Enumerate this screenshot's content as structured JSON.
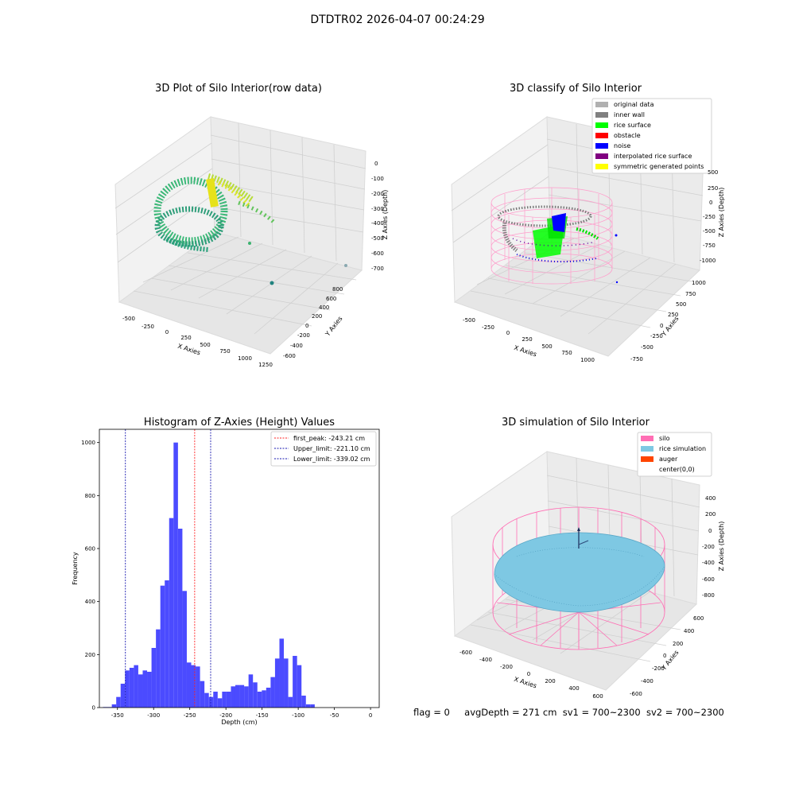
{
  "suptitle": "DTDTR02 2026-04-07 00:24:29",
  "colors": {
    "hist_bar": "#4b4bff",
    "first_peak": "#ff2222",
    "limits": "#1a1ab0",
    "silo": "#ff6eb4",
    "rice": "#7ec8e3",
    "auger": "#ff4500",
    "rice_surface": "#00ff00",
    "noise": "#0000ff"
  },
  "panels": {
    "raw": {
      "title": "3D Plot of Silo Interior(row data)",
      "xlabel": "X Axies",
      "ylabel": "Y Axies",
      "zlabel": "Z Axies (Depth)",
      "xticks": [
        "-500",
        "-250",
        "0",
        "250",
        "500",
        "750",
        "1000",
        "1250"
      ],
      "yticks": [
        "800",
        "600",
        "400",
        "200",
        "0",
        "-200",
        "-400",
        "-600"
      ],
      "zticks": [
        "0",
        "-100",
        "-200",
        "-300",
        "-400",
        "-500",
        "-600",
        "-700"
      ]
    },
    "classify": {
      "title": "3D classify of Silo Interior",
      "xlabel": "X Axies",
      "ylabel": "Y Axies",
      "zlabel": "Z Axies (Depth)",
      "xticks": [
        "-500",
        "-250",
        "0",
        "250",
        "500",
        "750",
        "1000"
      ],
      "yticks": [
        "1000",
        "750",
        "500",
        "250",
        "0",
        "-250",
        "-500",
        "-750"
      ],
      "zticks": [
        "500",
        "250",
        "0",
        "-250",
        "-500",
        "-750",
        "-1000"
      ],
      "legend": [
        {
          "label": "original data",
          "color": "#b0b0b0"
        },
        {
          "label": "inner wall",
          "color": "#808080"
        },
        {
          "label": "rice surface",
          "color": "#00ff00"
        },
        {
          "label": "obstacle",
          "color": "#ff0000"
        },
        {
          "label": "noise",
          "color": "#0000ff"
        },
        {
          "label": "interpolated rice surface",
          "color": "#800080"
        },
        {
          "label": "symmetric generated points",
          "color": "#ffff00"
        }
      ]
    },
    "simulation": {
      "title": "3D simulation of Silo Interior",
      "xlabel": "X Axies",
      "ylabel": "Y Axies",
      "zlabel": "Z Axies (Depth)",
      "xticks": [
        "-600",
        "-400",
        "-200",
        "0",
        "200",
        "400",
        "600"
      ],
      "yticks": [
        "600",
        "400",
        "200",
        "0",
        "-200",
        "-400",
        "-600"
      ],
      "zticks": [
        "400",
        "200",
        "0",
        "-200",
        "-400",
        "-600",
        "-800"
      ],
      "legend": [
        {
          "label": "silo",
          "color": "#ff6eb4"
        },
        {
          "label": "rice simulation",
          "color": "#7ec8e3"
        },
        {
          "label": "auger",
          "color": "#ff4500"
        },
        {
          "label": "center(0,0)",
          "color": "#ffffff"
        }
      ]
    }
  },
  "chart_data": {
    "type": "bar",
    "title": "Histogram of Z-Axies (Height) Values",
    "xlabel": "Depth (cm)",
    "ylabel": "Frequency",
    "xlim": [
      -375,
      12
    ],
    "ylim": [
      0,
      1050
    ],
    "xticks": [
      -350,
      -300,
      -250,
      -200,
      -150,
      -100,
      -50,
      0
    ],
    "yticks": [
      0,
      200,
      400,
      600,
      800,
      1000
    ],
    "bin_start": -370,
    "bin_width": 6.1,
    "values": [
      2,
      2,
      12,
      40,
      90,
      140,
      150,
      160,
      125,
      140,
      135,
      225,
      295,
      460,
      480,
      715,
      1000,
      675,
      440,
      170,
      160,
      155,
      100,
      55,
      40,
      60,
      35,
      60,
      60,
      80,
      85,
      85,
      80,
      125,
      95,
      60,
      65,
      75,
      115,
      185,
      260,
      185,
      40,
      195,
      160,
      45,
      12,
      12
    ],
    "vlines": [
      {
        "label": "first_peak: -243.21 cm",
        "x": -243.21,
        "color": "#ff2222"
      },
      {
        "label": "Upper_limit: -221.10 cm",
        "x": -221.1,
        "color": "#1a1ab0"
      },
      {
        "label": "Lower_limit: -339.02 cm",
        "x": -339.02,
        "color": "#1a1ab0"
      }
    ],
    "grid": false,
    "legend_position": "top-right"
  },
  "footer": {
    "flag": "flag = 0",
    "avg": "avgDepth = 271 cm",
    "sv1": "sv1 = 700~2300",
    "sv2": "sv2 = 700~2300"
  }
}
